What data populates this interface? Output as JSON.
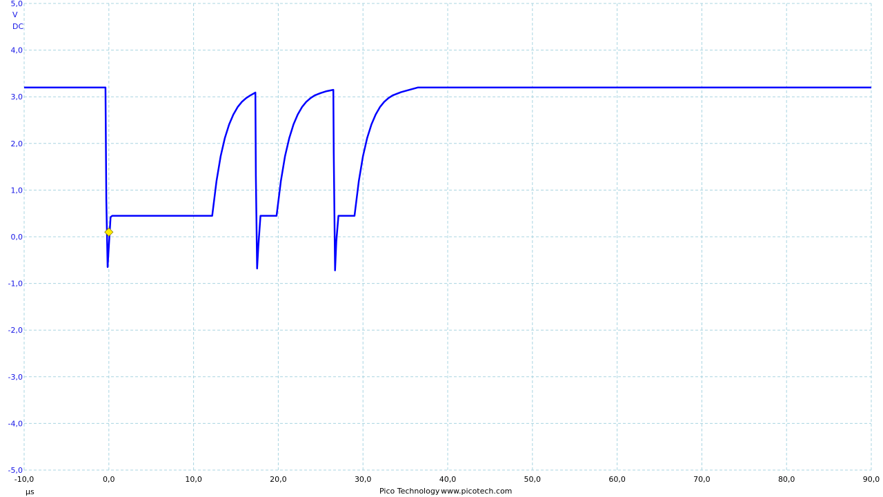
{
  "chart_data": {
    "type": "line",
    "title": "",
    "xlabel": "µs",
    "ylabel": "V",
    "coupling": "DC",
    "xlim": [
      -10,
      90
    ],
    "ylim": [
      -5,
      5
    ],
    "grid": true,
    "x_ticks": [
      "-10,0",
      "0,0",
      "10,0",
      "20,0",
      "30,0",
      "40,0",
      "50,0",
      "60,0",
      "70,0",
      "80,0",
      "90,0"
    ],
    "y_ticks": [
      "5,0",
      "4,0",
      "3,0",
      "2,0",
      "1,0",
      "0,0",
      "-1,0",
      "-2,0",
      "-3,0",
      "-4,0",
      "-5,0"
    ],
    "series_color": "#0000ff",
    "grid_color": "#a8d4e0",
    "trigger_marker": {
      "x": 0,
      "y": 0.1,
      "color": "#ffee00"
    },
    "series": [
      {
        "points": [
          [
            -10,
            3.2
          ],
          [
            -0.4,
            3.2
          ],
          [
            -0.3,
            0.8
          ],
          [
            -0.15,
            -0.65
          ],
          [
            0.1,
            0.1
          ],
          [
            0.2,
            0.42
          ],
          [
            0.4,
            0.45
          ],
          [
            12.2,
            0.45
          ],
          [
            12.7,
            1.19
          ],
          [
            13.2,
            1.73
          ],
          [
            13.7,
            2.12
          ],
          [
            14.2,
            2.41
          ],
          [
            14.7,
            2.62
          ],
          [
            15.2,
            2.78
          ],
          [
            15.7,
            2.89
          ],
          [
            16.2,
            2.97
          ],
          [
            16.7,
            3.03
          ],
          [
            17.3,
            3.09
          ],
          [
            17.35,
            1.3
          ],
          [
            17.5,
            -0.68
          ],
          [
            17.65,
            -0.2
          ],
          [
            17.9,
            0.45
          ],
          [
            19.8,
            0.45
          ],
          [
            20.3,
            1.19
          ],
          [
            20.8,
            1.73
          ],
          [
            21.3,
            2.12
          ],
          [
            21.8,
            2.41
          ],
          [
            22.3,
            2.62
          ],
          [
            22.8,
            2.78
          ],
          [
            23.3,
            2.89
          ],
          [
            23.8,
            2.97
          ],
          [
            24.3,
            3.03
          ],
          [
            25.0,
            3.08
          ],
          [
            25.7,
            3.12
          ],
          [
            26.5,
            3.15
          ],
          [
            26.55,
            1.8
          ],
          [
            26.7,
            -0.72
          ],
          [
            26.85,
            -0.1
          ],
          [
            27.1,
            0.45
          ],
          [
            29.0,
            0.45
          ],
          [
            29.5,
            1.19
          ],
          [
            30.0,
            1.73
          ],
          [
            30.5,
            2.12
          ],
          [
            31.0,
            2.41
          ],
          [
            31.5,
            2.62
          ],
          [
            32.0,
            2.78
          ],
          [
            32.5,
            2.89
          ],
          [
            33.0,
            2.97
          ],
          [
            33.5,
            3.03
          ],
          [
            34.5,
            3.1
          ],
          [
            35.5,
            3.15
          ],
          [
            36.5,
            3.2
          ],
          [
            90,
            3.2
          ]
        ]
      }
    ]
  },
  "footer": {
    "brand": "Pico Technology",
    "url": "www.picotech.com"
  }
}
